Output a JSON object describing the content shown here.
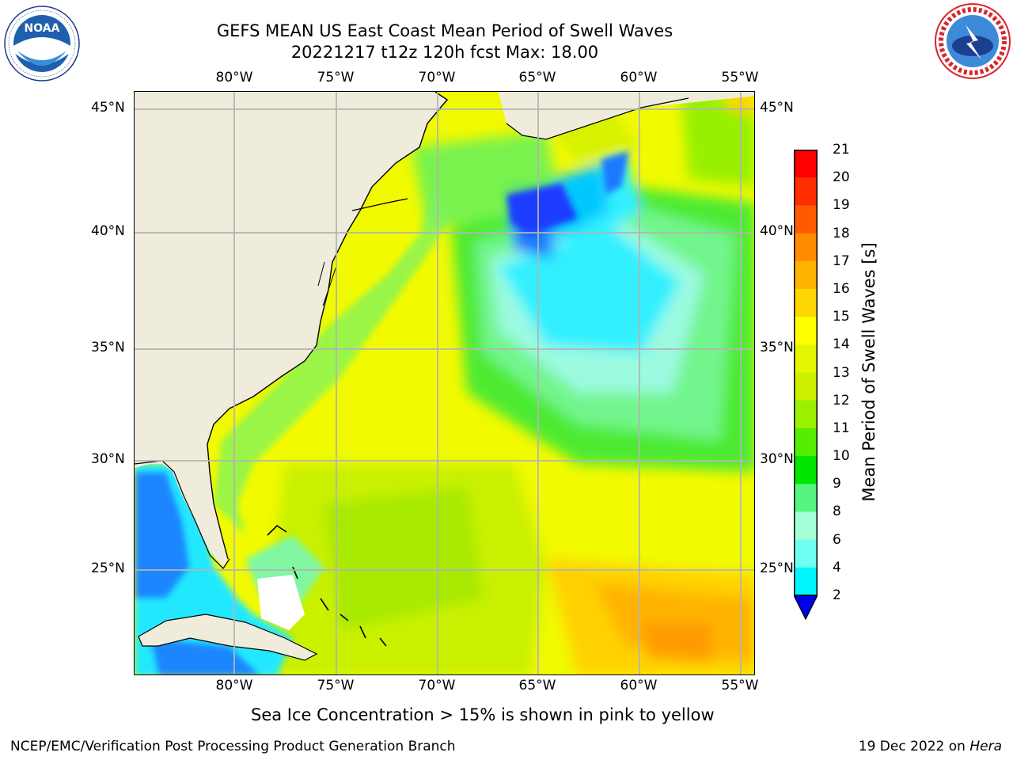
{
  "title_line1": "GEFS MEAN US East Coast Mean Period of Swell Waves",
  "title_line2": "20221217 t12z 120h fcst   Max: 18.00",
  "logos": {
    "left": {
      "name": "NOAA",
      "text": "NOAA"
    },
    "right": {
      "name": "NATIONAL WEATHER SERVICE"
    }
  },
  "map": {
    "lon_labels": [
      "80°W",
      "75°W",
      "70°W",
      "65°W",
      "60°W",
      "55°W"
    ],
    "lat_labels": [
      "45°N",
      "40°N",
      "35°N",
      "30°N",
      "25°N"
    ],
    "land_color": "#efecdc",
    "grid_color": "#b4b4b4"
  },
  "colorbar": {
    "label": "Mean Period of Swell Waves [s]",
    "ticks": [
      "21",
      "20",
      "19",
      "18",
      "17",
      "16",
      "15",
      "14",
      "13",
      "12",
      "11",
      "10",
      "9",
      "8",
      "6",
      "4",
      "2"
    ],
    "colors": [
      "#ff0000",
      "#ff2d00",
      "#ff5a00",
      "#ff8c00",
      "#ffb400",
      "#ffd700",
      "#ffff00",
      "#e5f500",
      "#ccf000",
      "#99f000",
      "#55ee00",
      "#00e600",
      "#55f580",
      "#a5ffd7",
      "#6dfff0",
      "#00f5ff",
      "#00c8ff",
      "#0073ff",
      "#0000e6"
    ]
  },
  "note": "Sea Ice Concentration > 15% is shown in pink to yellow",
  "footer_left": "NCEP/EMC/Verification Post Processing Product Generation Branch",
  "footer_date": "19 Dec 2022 on ",
  "footer_machine": "Hera"
}
